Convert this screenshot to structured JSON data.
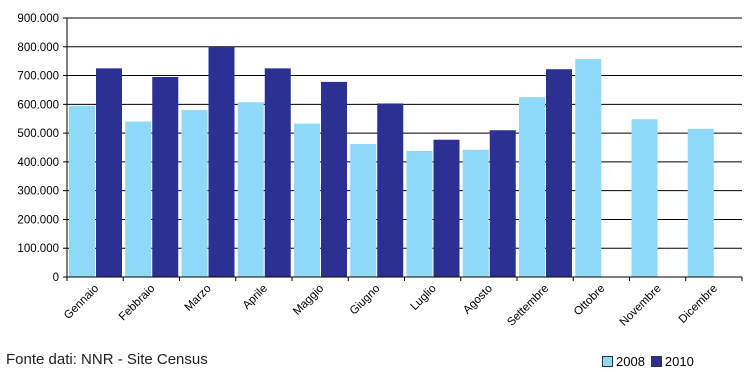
{
  "chart_data": {
    "type": "bar",
    "categories": [
      "Gennaio",
      "Febbraio",
      "Marzo",
      "Aprile",
      "Maggio",
      "Giugno",
      "Luglio",
      "Agosto",
      "Settembre",
      "Ottobre",
      "Novembre",
      "Dicembre"
    ],
    "series": [
      {
        "name": "2008",
        "color": "#8ed8f8",
        "values": [
          595000,
          540000,
          580000,
          607000,
          533000,
          462000,
          438000,
          442000,
          625000,
          757000,
          548000,
          515000
        ]
      },
      {
        "name": "2010",
        "color": "#2b3192",
        "values": [
          725000,
          695000,
          800000,
          725000,
          678000,
          603000,
          477000,
          510000,
          722000,
          null,
          null,
          null
        ]
      }
    ],
    "y_ticks": [
      "0",
      "100.000",
      "200.000",
      "300.000",
      "400.000",
      "500.000",
      "600.000",
      "700.000",
      "800.000",
      "900.000"
    ],
    "ylim": [
      0,
      900000
    ],
    "y_step": 100000,
    "title": "",
    "xlabel": "",
    "ylabel": "",
    "grid": true,
    "legend_position": "bottom-right"
  },
  "source_text": "Fonte dati: NNR - Site Census"
}
